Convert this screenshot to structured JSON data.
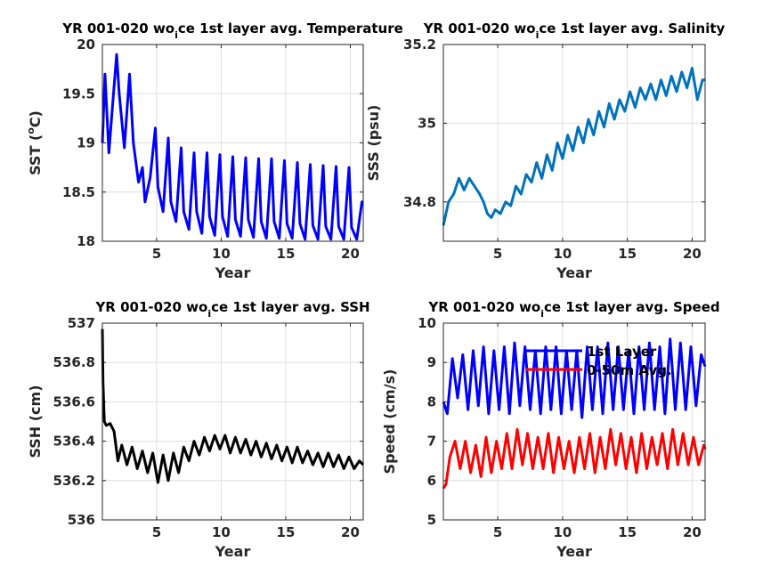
{
  "chart_data": [
    {
      "type": "line",
      "title_main": "YR 001-020 wo",
      "title_sub": "i",
      "title_rest": "ce 1st layer avg. Temperature",
      "xlabel": "Year",
      "ylabel": "SST (",
      "ylabel_sup": "o",
      "ylabel_end": "C)",
      "xlim": [
        0.8,
        21
      ],
      "ylim": [
        18,
        20
      ],
      "xticks": [
        "5",
        "10",
        "15",
        "20"
      ],
      "xtick_values": [
        5,
        10,
        15,
        20
      ],
      "yticks": [
        "18",
        "18.5",
        "19",
        "19.5",
        "20"
      ],
      "ytick_values": [
        18,
        18.5,
        19,
        19.5,
        20
      ],
      "grid": true,
      "series": [
        {
          "color": "#0000ff",
          "x": [
            0.8,
            1.0,
            1.3,
            1.6,
            1.9,
            2.1,
            2.5,
            2.9,
            3.2,
            3.6,
            3.9,
            4.1,
            4.5,
            4.9,
            5.1,
            5.5,
            5.9,
            6.1,
            6.5,
            6.9,
            7.1,
            7.5,
            7.9,
            8.1,
            8.5,
            8.9,
            9.1,
            9.5,
            9.9,
            10.1,
            10.5,
            10.9,
            11.1,
            11.5,
            11.9,
            12.1,
            12.5,
            12.9,
            13.1,
            13.5,
            13.9,
            14.1,
            14.5,
            14.9,
            15.1,
            15.5,
            15.9,
            16.1,
            16.5,
            16.9,
            17.1,
            17.5,
            17.9,
            18.1,
            18.5,
            18.9,
            19.1,
            19.5,
            19.9,
            20.1,
            20.5,
            20.9,
            21.0
          ],
          "y": [
            19.0,
            19.7,
            18.9,
            19.4,
            19.9,
            19.5,
            18.95,
            19.7,
            19.0,
            18.6,
            18.75,
            18.4,
            18.65,
            19.15,
            18.55,
            18.3,
            19.05,
            18.4,
            18.2,
            18.95,
            18.3,
            18.12,
            18.9,
            18.3,
            18.08,
            18.9,
            18.25,
            18.06,
            18.88,
            18.25,
            18.05,
            18.86,
            18.22,
            18.05,
            18.85,
            18.22,
            18.04,
            18.84,
            18.2,
            18.03,
            18.84,
            18.2,
            18.03,
            18.82,
            18.18,
            18.03,
            18.8,
            18.18,
            18.02,
            18.78,
            18.16,
            18.02,
            18.77,
            18.15,
            18.02,
            18.76,
            18.15,
            18.02,
            18.75,
            18.14,
            18.02,
            18.4,
            18.4
          ]
        }
      ]
    },
    {
      "type": "line",
      "title_main": "YR 001-020 wo",
      "title_sub": "i",
      "title_rest": "ce 1st layer avg. Salinity",
      "xlabel": "Year",
      "ylabel": "SSS (psu)",
      "xlim": [
        0.8,
        21
      ],
      "ylim": [
        34.7,
        35.2
      ],
      "xticks": [
        "5",
        "10",
        "15",
        "20"
      ],
      "xtick_values": [
        5,
        10,
        15,
        20
      ],
      "yticks": [
        "34.8",
        "35",
        "35.2"
      ],
      "ytick_values": [
        34.8,
        35.0,
        35.2
      ],
      "grid": true,
      "series": [
        {
          "color": "#0072bd",
          "x": [
            0.8,
            1.2,
            1.6,
            2.0,
            2.4,
            2.8,
            3.2,
            3.6,
            3.9,
            4.2,
            4.5,
            4.8,
            5.2,
            5.6,
            6.0,
            6.4,
            6.8,
            7.2,
            7.6,
            8.0,
            8.4,
            8.8,
            9.2,
            9.6,
            10.0,
            10.4,
            10.8,
            11.2,
            11.6,
            12.0,
            12.4,
            12.8,
            13.2,
            13.6,
            14.0,
            14.4,
            14.8,
            15.2,
            15.6,
            16.0,
            16.4,
            16.8,
            17.2,
            17.6,
            18.0,
            18.4,
            18.8,
            19.2,
            19.6,
            20.0,
            20.4,
            20.8,
            21.0
          ],
          "y": [
            34.74,
            34.8,
            34.82,
            34.86,
            34.83,
            34.86,
            34.84,
            34.82,
            34.8,
            34.77,
            34.76,
            34.78,
            34.77,
            34.8,
            34.79,
            34.84,
            34.82,
            34.87,
            34.85,
            34.9,
            34.86,
            34.92,
            34.88,
            34.95,
            34.91,
            34.97,
            34.93,
            34.99,
            34.95,
            35.01,
            34.97,
            35.03,
            34.99,
            35.05,
            35.01,
            35.06,
            35.03,
            35.08,
            35.04,
            35.09,
            35.06,
            35.1,
            35.06,
            35.11,
            35.07,
            35.12,
            35.08,
            35.13,
            35.09,
            35.14,
            35.06,
            35.11,
            35.11
          ]
        }
      ]
    },
    {
      "type": "line",
      "title_main": "YR 001-020 wo",
      "title_sub": "i",
      "title_rest": "ce 1st layer avg. SSH",
      "xlabel": "Year",
      "ylabel": "SSH (cm)",
      "xlim": [
        0.8,
        21
      ],
      "ylim": [
        536,
        537
      ],
      "xticks": [
        "5",
        "10",
        "15",
        "20"
      ],
      "xtick_values": [
        5,
        10,
        15,
        20
      ],
      "yticks": [
        "536",
        "536.2",
        "536.4",
        "536.6",
        "536.8",
        "537"
      ],
      "ytick_values": [
        536.0,
        536.2,
        536.4,
        536.6,
        536.8,
        537.0
      ],
      "grid": true,
      "series": [
        {
          "color": "#000000",
          "x": [
            0.8,
            0.85,
            0.95,
            1.1,
            1.4,
            1.7,
            2.0,
            2.3,
            2.7,
            3.1,
            3.5,
            3.9,
            4.3,
            4.7,
            5.1,
            5.5,
            5.9,
            6.3,
            6.7,
            7.1,
            7.5,
            7.9,
            8.3,
            8.7,
            9.1,
            9.5,
            9.9,
            10.3,
            10.7,
            11.1,
            11.5,
            11.9,
            12.3,
            12.7,
            13.1,
            13.5,
            13.9,
            14.3,
            14.7,
            15.1,
            15.5,
            15.9,
            16.3,
            16.7,
            17.1,
            17.5,
            17.9,
            18.3,
            18.7,
            19.1,
            19.5,
            19.9,
            20.3,
            20.7,
            21.0
          ],
          "y": [
            536.97,
            536.7,
            536.5,
            536.48,
            536.49,
            536.45,
            536.3,
            536.38,
            536.28,
            536.37,
            536.26,
            536.35,
            536.24,
            536.34,
            536.19,
            536.33,
            536.2,
            536.34,
            536.24,
            536.37,
            536.3,
            536.4,
            536.33,
            536.42,
            536.35,
            536.43,
            536.36,
            536.43,
            536.34,
            536.42,
            536.34,
            536.41,
            536.33,
            536.4,
            536.32,
            536.39,
            536.31,
            536.38,
            536.3,
            536.37,
            536.29,
            536.37,
            536.29,
            536.35,
            536.28,
            536.34,
            536.27,
            536.34,
            536.27,
            536.33,
            536.26,
            536.32,
            536.26,
            536.3,
            536.28
          ]
        }
      ]
    },
    {
      "type": "line",
      "title_main": "YR 001-020 wo",
      "title_sub": "i",
      "title_rest": "ce 1st layer avg. Speed",
      "xlabel": "Year",
      "ylabel": "Speed (cm/s)",
      "xlim": [
        0.8,
        21
      ],
      "ylim": [
        5,
        10
      ],
      "xticks": [
        "5",
        "10",
        "15",
        "20"
      ],
      "xtick_values": [
        5,
        10,
        15,
        20
      ],
      "yticks": [
        "5",
        "6",
        "7",
        "8",
        "9",
        "10"
      ],
      "ytick_values": [
        5,
        6,
        7,
        8,
        9,
        10
      ],
      "grid": true,
      "legend_position": "top-center",
      "series": [
        {
          "name": "1st Layer",
          "color": "#0000ff",
          "x": [
            0.8,
            1.1,
            1.5,
            1.9,
            2.3,
            2.7,
            3.1,
            3.5,
            3.9,
            4.3,
            4.7,
            5.1,
            5.5,
            5.9,
            6.3,
            6.7,
            7.1,
            7.5,
            7.9,
            8.3,
            8.7,
            9.1,
            9.5,
            9.9,
            10.3,
            10.7,
            11.1,
            11.5,
            11.9,
            12.3,
            12.7,
            13.1,
            13.5,
            13.9,
            14.3,
            14.7,
            15.1,
            15.5,
            15.9,
            16.3,
            16.7,
            17.1,
            17.5,
            17.9,
            18.3,
            18.7,
            19.1,
            19.5,
            19.9,
            20.3,
            20.7,
            21.0
          ],
          "y": [
            8.0,
            7.7,
            9.1,
            8.1,
            9.2,
            7.8,
            9.3,
            7.9,
            9.4,
            7.7,
            9.3,
            7.8,
            9.4,
            7.7,
            9.5,
            7.9,
            9.4,
            7.8,
            9.3,
            7.7,
            9.4,
            7.8,
            9.4,
            7.7,
            9.3,
            7.8,
            9.3,
            7.6,
            9.4,
            7.8,
            9.4,
            7.7,
            9.5,
            7.8,
            9.4,
            7.8,
            9.3,
            7.7,
            9.4,
            7.8,
            9.5,
            7.8,
            9.4,
            7.7,
            9.6,
            7.8,
            9.5,
            7.8,
            9.4,
            7.9,
            9.2,
            8.9
          ]
        },
        {
          "name": "0-50m Avg.",
          "color": "#ff0000",
          "x": [
            0.8,
            1.0,
            1.3,
            1.7,
            2.1,
            2.5,
            2.9,
            3.3,
            3.7,
            4.1,
            4.5,
            4.9,
            5.3,
            5.7,
            6.1,
            6.5,
            6.9,
            7.3,
            7.7,
            8.1,
            8.5,
            8.9,
            9.3,
            9.7,
            10.1,
            10.5,
            10.9,
            11.3,
            11.7,
            12.1,
            12.5,
            12.9,
            13.3,
            13.7,
            14.1,
            14.5,
            14.9,
            15.3,
            15.7,
            16.1,
            16.5,
            16.9,
            17.3,
            17.7,
            18.1,
            18.5,
            18.9,
            19.3,
            19.7,
            20.1,
            20.5,
            20.9,
            21.0
          ],
          "y": [
            5.8,
            5.9,
            6.6,
            7.0,
            6.3,
            7.0,
            6.2,
            6.9,
            6.1,
            7.1,
            6.2,
            7.0,
            6.3,
            7.2,
            6.3,
            7.3,
            6.4,
            7.2,
            6.3,
            7.1,
            6.3,
            7.2,
            6.2,
            7.1,
            6.3,
            7.0,
            6.2,
            7.1,
            6.3,
            7.2,
            6.2,
            7.1,
            6.3,
            7.3,
            6.4,
            7.2,
            6.3,
            7.1,
            6.2,
            7.2,
            6.3,
            7.1,
            6.4,
            7.2,
            6.3,
            7.3,
            6.4,
            7.2,
            6.4,
            7.1,
            6.4,
            6.9,
            6.8
          ]
        }
      ]
    }
  ]
}
